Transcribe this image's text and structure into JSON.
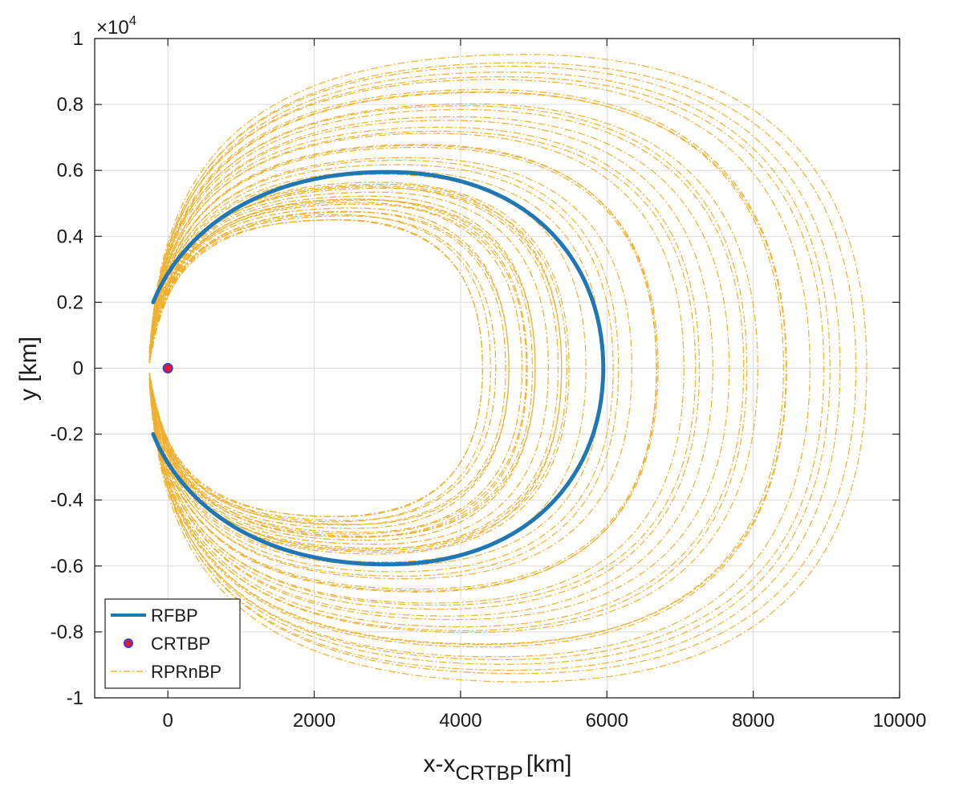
{
  "chart_data": {
    "type": "line",
    "title": "",
    "xlabel_main": "x-x",
    "xlabel_sub": "CRTBP",
    "xlabel_unit": "[km]",
    "ylabel": "y [km]",
    "y_exponent_prefix": "×10",
    "y_exponent_power": "4",
    "xlim": [
      -1000,
      10000
    ],
    "ylim": [
      -10000,
      10000
    ],
    "x_ticks": [
      0,
      2000,
      4000,
      6000,
      8000,
      10000
    ],
    "x_tick_labels": [
      "0",
      "2000",
      "4000",
      "6000",
      "8000",
      "10000"
    ],
    "y_ticks": [
      -10000,
      -8000,
      -6000,
      -4000,
      -2000,
      0,
      2000,
      4000,
      6000,
      8000,
      10000
    ],
    "y_tick_labels": [
      "-1",
      "-0.8",
      "-0.6",
      "-0.4",
      "-0.2",
      "0",
      "0.2",
      "0.4",
      "0.6",
      "0.8",
      "1"
    ],
    "grid": true,
    "legend_position": "bottom-left",
    "series": [
      {
        "name": "RFBP",
        "style": "solid",
        "color": "#1f77b4",
        "shape": "crescent",
        "inner_vertex_x": -200,
        "inner_half_height": 2000,
        "top_y": 5950,
        "top_x": 3000,
        "right_x": 5950
      },
      {
        "name": "CRTBP",
        "style": "marker",
        "color": "#e8192c",
        "edge_color": "#3a3ad0",
        "x": 0,
        "y": 0
      },
      {
        "name": "RPRnBP",
        "style": "dash-dot",
        "color": "#f0b02e",
        "shape": "family of crescent orbits",
        "inner_vertex_x": -250,
        "right_x_min": 4300,
        "right_x_max": 9550,
        "top_y_min": 4500,
        "top_y_max": 9550
      }
    ]
  },
  "legend": {
    "items": [
      "RFBP",
      "CRTBP",
      "RPRnBP"
    ]
  }
}
